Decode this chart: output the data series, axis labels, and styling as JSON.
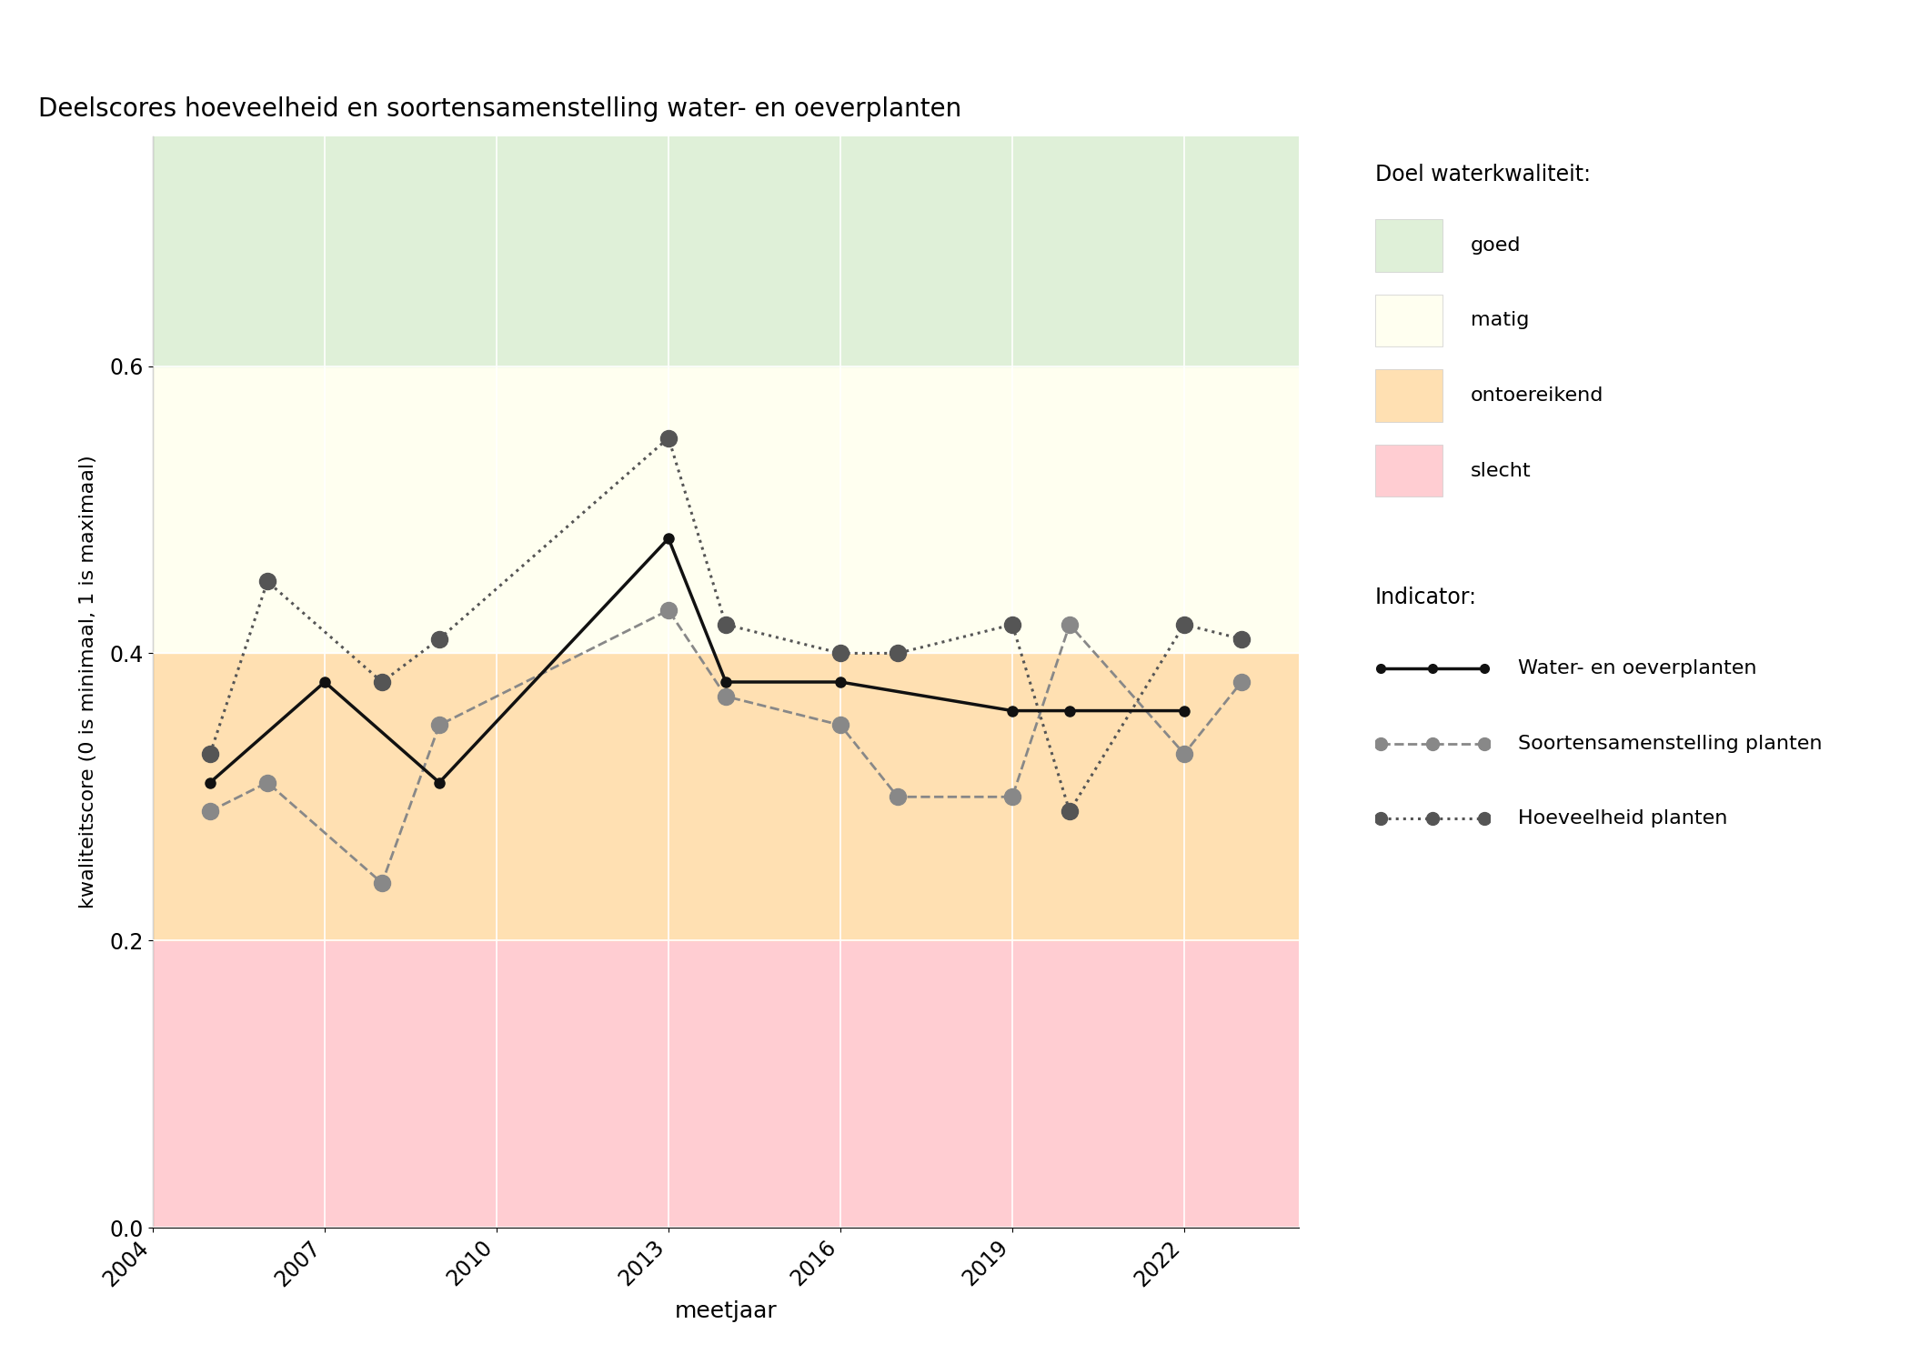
{
  "title": "Deelscores hoeveelheid en soortensamenstelling water- en oeverplanten",
  "xlabel": "meetjaar",
  "ylabel": "kwaliteitscore (0 is minimaal, 1 is maximaal)",
  "xlim": [
    2004,
    2024
  ],
  "ylim": [
    0.0,
    0.76
  ],
  "xticks": [
    2004,
    2007,
    2010,
    2013,
    2016,
    2019,
    2022
  ],
  "yticks": [
    0.0,
    0.2,
    0.4,
    0.6
  ],
  "zones": [
    {
      "ymin": 0.0,
      "ymax": 0.2,
      "color": "#ffcdd2",
      "label": "slecht"
    },
    {
      "ymin": 0.2,
      "ymax": 0.4,
      "color": "#ffe0b2",
      "label": "ontoereikend"
    },
    {
      "ymin": 0.4,
      "ymax": 0.6,
      "color": "#fffff0",
      "label": "matig"
    },
    {
      "ymin": 0.6,
      "ymax": 0.76,
      "color": "#dff0d8",
      "label": "goed"
    }
  ],
  "line_water": {
    "x": [
      2005,
      2007,
      2009,
      2013,
      2014,
      2016,
      2019,
      2020,
      2022
    ],
    "y": [
      0.31,
      0.38,
      0.31,
      0.48,
      0.38,
      0.38,
      0.36,
      0.36,
      0.36
    ],
    "color": "#111111",
    "linestyle": "-",
    "linewidth": 2.5,
    "markersize": 8,
    "label": "Water- en oeverplanten"
  },
  "line_soorten": {
    "x": [
      2005,
      2006,
      2008,
      2009,
      2013,
      2014,
      2016,
      2017,
      2019,
      2020,
      2022,
      2023
    ],
    "y": [
      0.29,
      0.31,
      0.24,
      0.35,
      0.43,
      0.37,
      0.35,
      0.3,
      0.3,
      0.42,
      0.33,
      0.38
    ],
    "color": "#888888",
    "linestyle": "--",
    "linewidth": 2.0,
    "markersize": 13,
    "label": "Soortensamenstelling planten"
  },
  "line_hoeveelheid": {
    "x": [
      2005,
      2006,
      2008,
      2009,
      2013,
      2014,
      2016,
      2017,
      2019,
      2020,
      2022,
      2023
    ],
    "y": [
      0.33,
      0.45,
      0.38,
      0.41,
      0.55,
      0.42,
      0.4,
      0.4,
      0.42,
      0.29,
      0.42,
      0.41
    ],
    "color": "#555555",
    "linestyle": ":",
    "linewidth": 2.2,
    "markersize": 13,
    "label": "Hoeveelheid planten"
  },
  "legend_quality_title": "Doel waterkwaliteit:",
  "legend_indicator_title": "Indicator:",
  "legend_quality_colors": [
    "#dff0d8",
    "#fffff0",
    "#ffe0b2",
    "#ffcdd2"
  ],
  "legend_quality_labels": [
    "goed",
    "matig",
    "ontoereikend",
    "slecht"
  ]
}
